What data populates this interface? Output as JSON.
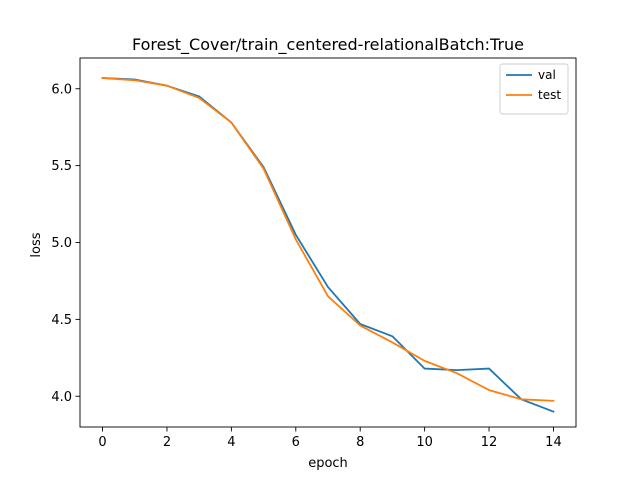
{
  "chart_data": {
    "type": "line",
    "title": "Forest_Cover/train_centered-relationalBatch:True",
    "xlabel": "epoch",
    "ylabel": "loss",
    "xlim": [
      -0.7,
      14.7
    ],
    "ylim": [
      3.8,
      6.2
    ],
    "xticks": [
      0,
      2,
      4,
      6,
      8,
      10,
      12,
      14
    ],
    "yticks": [
      4.0,
      4.5,
      5.0,
      5.5,
      6.0
    ],
    "x": [
      0,
      1,
      2,
      3,
      4,
      5,
      6,
      7,
      8,
      9,
      10,
      11,
      12,
      13,
      14
    ],
    "series": [
      {
        "name": "val",
        "color": "#1f77b4",
        "values": [
          6.07,
          6.06,
          6.02,
          5.95,
          5.78,
          5.49,
          5.05,
          4.71,
          4.47,
          4.39,
          4.18,
          4.17,
          4.18,
          3.98,
          3.9
        ]
      },
      {
        "name": "test",
        "color": "#ff7f0e",
        "values": [
          6.07,
          6.055,
          6.02,
          5.94,
          5.78,
          5.48,
          5.02,
          4.65,
          4.46,
          4.35,
          4.23,
          4.15,
          4.04,
          3.98,
          3.97
        ]
      }
    ],
    "legend_position": "top-right",
    "grid": false
  }
}
